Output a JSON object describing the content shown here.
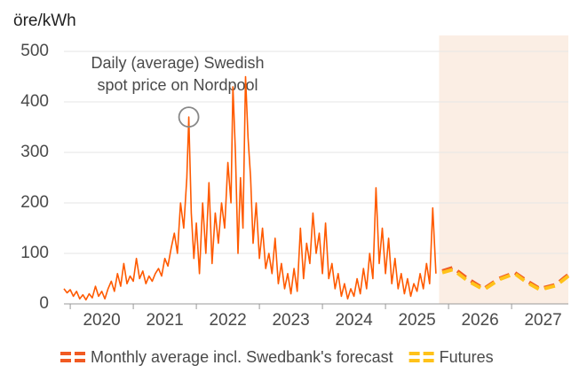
{
  "chart_data": {
    "type": "line",
    "y_label": "öre/kWh",
    "annotation": [
      "Daily (average) Swedish",
      "spot price on Nordpool"
    ],
    "xlim": [
      2019.9,
      2027.9
    ],
    "xticks": [
      2020,
      2021,
      2022,
      2023,
      2024,
      2025,
      2026,
      2027
    ],
    "ylim": [
      0,
      500
    ],
    "yticks": [
      0,
      100,
      200,
      300,
      400,
      500
    ],
    "grid": true,
    "shaded_from": 2025.85,
    "shade_color": "#fbeee4",
    "legend": "bottom",
    "series": [
      {
        "color": "#ff5a00",
        "dash": false,
        "x": [
          2019.9,
          2019.95,
          2020,
          2020.05,
          2020.1,
          2020.15,
          2020.2,
          2020.25,
          2020.3,
          2020.35,
          2020.4,
          2020.45,
          2020.5,
          2020.55,
          2020.6,
          2020.65,
          2020.7,
          2020.75,
          2020.8,
          2020.85,
          2020.9,
          2020.95,
          2021,
          2021.05,
          2021.1,
          2021.15,
          2021.2,
          2021.25,
          2021.3,
          2021.35,
          2021.4,
          2021.45,
          2021.5,
          2021.55,
          2021.6,
          2021.65,
          2021.7,
          2021.75,
          2021.8,
          2021.85,
          2021.88,
          2021.92,
          2021.96,
          2022,
          2022.05,
          2022.1,
          2022.15,
          2022.2,
          2022.25,
          2022.3,
          2022.35,
          2022.4,
          2022.45,
          2022.5,
          2022.55,
          2022.58,
          2022.62,
          2022.66,
          2022.7,
          2022.74,
          2022.78,
          2022.82,
          2022.86,
          2022.9,
          2022.95,
          2023,
          2023.05,
          2023.1,
          2023.15,
          2023.2,
          2023.25,
          2023.3,
          2023.35,
          2023.4,
          2023.45,
          2023.5,
          2023.55,
          2023.6,
          2023.65,
          2023.7,
          2023.75,
          2023.8,
          2023.85,
          2023.9,
          2023.95,
          2024,
          2024.05,
          2024.1,
          2024.15,
          2024.2,
          2024.25,
          2024.3,
          2024.35,
          2024.4,
          2024.45,
          2024.5,
          2024.55,
          2024.6,
          2024.65,
          2024.7,
          2024.75,
          2024.8,
          2024.85,
          2024.9,
          2024.95,
          2025,
          2025.05,
          2025.1,
          2025.15,
          2025.2,
          2025.25,
          2025.3,
          2025.35,
          2025.4,
          2025.45,
          2025.5,
          2025.55,
          2025.6,
          2025.65,
          2025.7,
          2025.75,
          2025.8
        ],
        "values": [
          30,
          22,
          28,
          15,
          25,
          10,
          18,
          8,
          20,
          12,
          35,
          15,
          25,
          10,
          30,
          45,
          25,
          60,
          35,
          80,
          40,
          55,
          45,
          90,
          50,
          65,
          40,
          55,
          45,
          60,
          70,
          55,
          90,
          75,
          110,
          140,
          100,
          200,
          150,
          250,
          370,
          180,
          90,
          160,
          60,
          200,
          100,
          240,
          80,
          180,
          120,
          200,
          150,
          280,
          200,
          430,
          300,
          100,
          250,
          150,
          450,
          330,
          250,
          120,
          200,
          90,
          150,
          70,
          100,
          60,
          130,
          40,
          80,
          30,
          60,
          20,
          70,
          25,
          150,
          50,
          120,
          80,
          180,
          100,
          140,
          60,
          160,
          50,
          80,
          30,
          60,
          15,
          40,
          10,
          30,
          15,
          50,
          20,
          70,
          30,
          100,
          50,
          230,
          80,
          150,
          60,
          130,
          40,
          90,
          30,
          60,
          20,
          50,
          15,
          40,
          25,
          60,
          30,
          80,
          40,
          190,
          60
        ]
      },
      {
        "name": "Monthly average incl. Swedbank's forecast",
        "color": "#f15a22",
        "dash": true,
        "x": [
          2025.9,
          2026.07,
          2026.3,
          2026.56,
          2026.8,
          2027.05,
          2027.25,
          2027.45,
          2027.7,
          2027.9
        ],
        "values": [
          65,
          72,
          50,
          30,
          50,
          62,
          45,
          30,
          38,
          58
        ]
      },
      {
        "name": "Futures",
        "color": "#ffc21a",
        "dash": true,
        "x": [
          2025.9,
          2026.07,
          2026.3,
          2026.56,
          2026.8,
          2027.05,
          2027.25,
          2027.45,
          2027.7,
          2027.9
        ],
        "values": [
          62,
          68,
          46,
          28,
          48,
          60,
          42,
          28,
          36,
          55
        ]
      }
    ]
  }
}
